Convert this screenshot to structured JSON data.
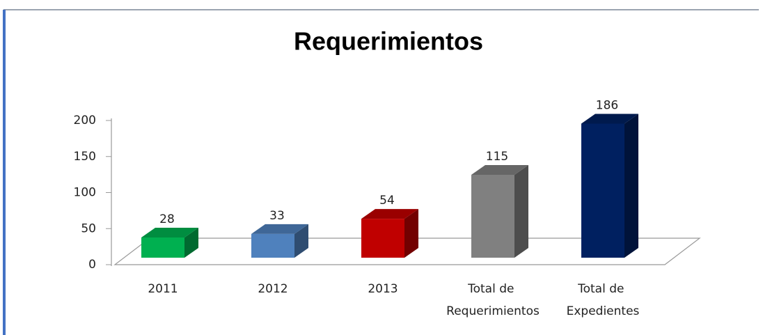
{
  "chart_data": {
    "type": "bar3d",
    "title": "Requerimientos",
    "categories": [
      "2011",
      "2012",
      "2013",
      "Total de Requerimientos",
      "Total de Expedientes"
    ],
    "values": [
      28,
      33,
      54,
      115,
      186
    ],
    "colors": [
      "#00b050",
      "#4f81bd",
      "#c00000",
      "#808080",
      "#002060"
    ],
    "ylim": [
      0,
      200
    ],
    "yticks": [
      0,
      50,
      100,
      150,
      200
    ]
  }
}
